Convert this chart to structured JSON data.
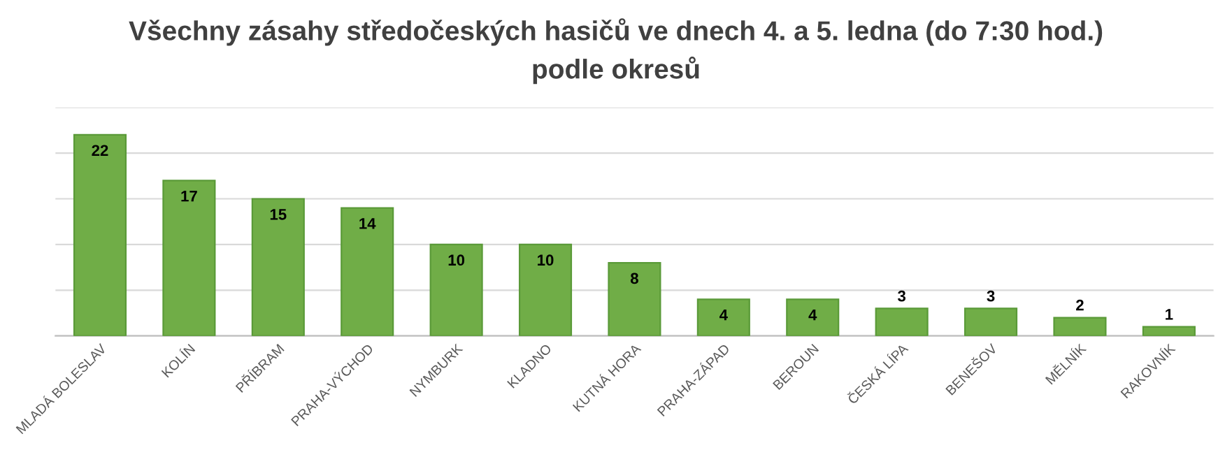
{
  "chart_data": {
    "type": "bar",
    "title": "Všechny zásahy středočeských hasičů ve dnech 4. a 5. ledna (do 7:30 hod.)\npodle okresů",
    "categories": [
      "MLADÁ BOLESLAV",
      "KOLÍN",
      "PŘÍBRAM",
      "PRAHA-VÝCHOD",
      "NYMBURK",
      "KLADNO",
      "KUTNÁ HORA",
      "PRAHA-ZÁPAD",
      "BEROUN",
      "ČESKÁ LÍPA",
      "BENEŠOV",
      "MĚLNÍK",
      "RAKOVNÍK"
    ],
    "values": [
      22,
      17,
      15,
      14,
      10,
      10,
      8,
      4,
      4,
      3,
      3,
      2,
      1
    ],
    "color": "#70ad47",
    "ylim": [
      0,
      25
    ],
    "yticks": [
      {
        "value": 0,
        "label": null
      },
      {
        "value": 5,
        "label": null
      },
      {
        "value": 10,
        "label": null
      },
      {
        "value": 15,
        "label": null
      },
      {
        "value": 20,
        "label": null
      },
      {
        "value": 25,
        "label": null
      }
    ],
    "grid": "y",
    "tick_labels": "x",
    "data_labels": true,
    "legend": false
  }
}
